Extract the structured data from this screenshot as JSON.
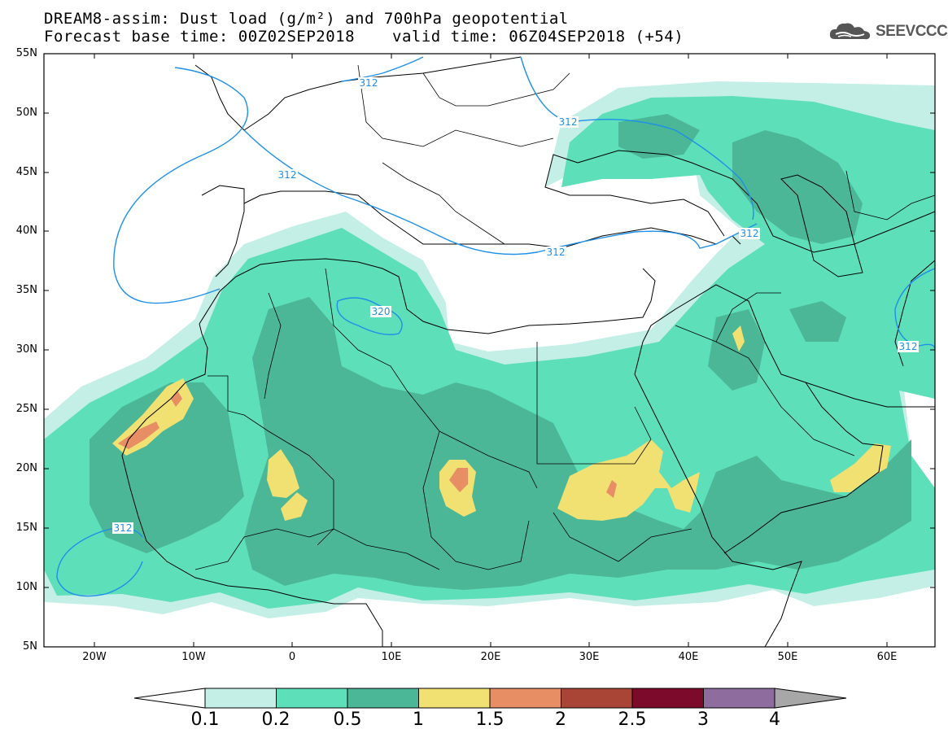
{
  "header": {
    "title_line1": "DREAM8-assim: Dust load (g/m²) and 700hPa geopotential",
    "title_line2": "Forecast base time: 00Z02SEP2018",
    "valid_time": "valid time: 06Z04SEP2018 (+54)",
    "logo_text": "SEEVCCC",
    "logo_icon": "cloud-icon"
  },
  "map": {
    "lat_labels": [
      "55N",
      "50N",
      "45N",
      "40N",
      "35N",
      "30N",
      "25N",
      "20N",
      "15N",
      "10N",
      "5N"
    ],
    "lon_labels": [
      "20W",
      "10W",
      "0",
      "10E",
      "20E",
      "30E",
      "40E",
      "50E",
      "60E"
    ],
    "contour_labels": [
      "312",
      "312",
      "312",
      "312",
      "320",
      "312",
      "312",
      "312"
    ],
    "projection": "lat-lon",
    "lat_range": [
      5,
      55
    ],
    "lon_range": [
      -25,
      65
    ]
  },
  "colorbar": {
    "labels": [
      "0.1",
      "0.2",
      "0.5",
      "1",
      "1.5",
      "2",
      "2.5",
      "3",
      "4"
    ],
    "colors": [
      "#ffffff",
      "#c4efe6",
      "#5ddfb9",
      "#4cb796",
      "#f1e072",
      "#e88e64",
      "#a94537",
      "#7b0a2b",
      "#8e6c9e",
      "#a7a7a7"
    ]
  },
  "palette": {
    "ocean_bg": "#ffffff",
    "level1": "#c4efe6",
    "level2": "#5ddfb9",
    "level3": "#4cb796",
    "level4": "#f1e072",
    "level5": "#e88e64",
    "contour": "#1e90e8"
  }
}
